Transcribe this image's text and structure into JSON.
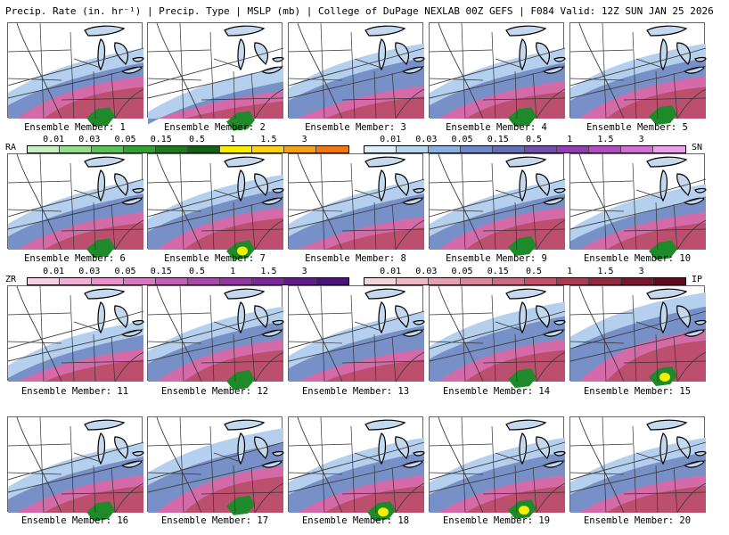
{
  "header": {
    "title": "Precip. Rate (in. hr⁻¹) | Precip. Type | MSLP (mb) | College of DuPage NEXLAB    00Z GEFS | F084 Valid: 12Z SUN JAN 25 2026"
  },
  "members": [
    {
      "label": "Ensemble Member: 1",
      "snow": 0.55,
      "mix": 0.35,
      "rain": 0.1,
      "heavy": false
    },
    {
      "label": "Ensemble Member: 2",
      "snow": 0.35,
      "mix": 0.2,
      "rain": 0.06,
      "heavy": false
    },
    {
      "label": "Ensemble Member: 3",
      "snow": 0.6,
      "mix": 0.25,
      "rain": 0.0,
      "heavy": false
    },
    {
      "label": "Ensemble Member: 4",
      "snow": 0.55,
      "mix": 0.3,
      "rain": 0.1,
      "heavy": false
    },
    {
      "label": "Ensemble Member: 5",
      "snow": 0.6,
      "mix": 0.35,
      "rain": 0.12,
      "heavy": false
    },
    {
      "label": "Ensemble Member: 6",
      "snow": 0.55,
      "mix": 0.3,
      "rain": 0.1,
      "heavy": false
    },
    {
      "label": "Ensemble Member: 7",
      "snow": 0.6,
      "mix": 0.35,
      "rain": 0.08,
      "heavy": true
    },
    {
      "label": "Ensemble Member: 8",
      "snow": 0.55,
      "mix": 0.25,
      "rain": 0.0,
      "heavy": false
    },
    {
      "label": "Ensemble Member: 9",
      "snow": 0.55,
      "mix": 0.35,
      "rain": 0.12,
      "heavy": false
    },
    {
      "label": "Ensemble Member: 10",
      "snow": 0.5,
      "mix": 0.3,
      "rain": 0.08,
      "heavy": false
    },
    {
      "label": "Ensemble Member: 11",
      "snow": 0.45,
      "mix": 0.25,
      "rain": 0.0,
      "heavy": false
    },
    {
      "label": "Ensemble Member: 12",
      "snow": 0.6,
      "mix": 0.35,
      "rain": 0.1,
      "heavy": false
    },
    {
      "label": "Ensemble Member: 13",
      "snow": 0.55,
      "mix": 0.25,
      "rain": 0.0,
      "heavy": false
    },
    {
      "label": "Ensemble Member: 14",
      "snow": 0.65,
      "mix": 0.35,
      "rain": 0.12,
      "heavy": false
    },
    {
      "label": "Ensemble Member: 15",
      "snow": 0.75,
      "mix": 0.45,
      "rain": 0.14,
      "heavy": true
    },
    {
      "label": "Ensemble Member: 16",
      "snow": 0.55,
      "mix": 0.3,
      "rain": 0.1,
      "heavy": false
    },
    {
      "label": "Ensemble Member: 17",
      "snow": 0.7,
      "mix": 0.4,
      "rain": 0.16,
      "heavy": false
    },
    {
      "label": "Ensemble Member: 18",
      "snow": 0.6,
      "mix": 0.3,
      "rain": 0.1,
      "heavy": true
    },
    {
      "label": "Ensemble Member: 19",
      "snow": 0.6,
      "mix": 0.3,
      "rain": 0.12,
      "heavy": true
    },
    {
      "label": "Ensemble Member: 20",
      "snow": 0.6,
      "mix": 0.3,
      "rain": 0.0,
      "heavy": false
    }
  ],
  "legends": {
    "ra": {
      "code": "RA",
      "ticks": [
        "0.01",
        "0.03",
        "0.05",
        "0.15",
        "0.5",
        "1",
        "1.5",
        "3"
      ],
      "colors": [
        "#c8eec4",
        "#98dc90",
        "#5cc05a",
        "#34a034",
        "#1f7a1f",
        "#146014",
        "#f6f000",
        "#ffd21a",
        "#f4a21a",
        "#f07814"
      ]
    },
    "sn": {
      "code": "SN",
      "ticks": [
        "0.01",
        "0.03",
        "0.05",
        "0.15",
        "0.5",
        "1",
        "1.5",
        "3"
      ],
      "colors": [
        "#dceefa",
        "#b4d4f0",
        "#8cb0e0",
        "#7088c8",
        "#6470b4",
        "#7050a8",
        "#9040b0",
        "#b050c0",
        "#d070d0",
        "#e8a0e8"
      ]
    },
    "zr": {
      "code": "ZR",
      "ticks": [
        "0.01",
        "0.03",
        "0.05",
        "0.15",
        "0.5",
        "1",
        "1.5",
        "3"
      ],
      "colors": [
        "#f8d0e4",
        "#f0b0d4",
        "#e890c8",
        "#d878c0",
        "#c060b4",
        "#a848a8",
        "#9038a0",
        "#782898",
        "#601c88",
        "#4a1478"
      ]
    },
    "ip": {
      "code": "IP",
      "ticks": [
        "0.01",
        "0.03",
        "0.05",
        "0.15",
        "0.5",
        "1",
        "1.5",
        "3"
      ],
      "colors": [
        "#f4d4dc",
        "#ecb8c4",
        "#e4a0b0",
        "#d8869a",
        "#cc6c84",
        "#c0506c",
        "#a83c54",
        "#902840",
        "#781830",
        "#600c20"
      ]
    }
  },
  "colors": {
    "snow_light": "#b4d0ee",
    "snow_mid": "#7890c8",
    "snow_heavy": "#5864a8",
    "mix": "#d46aa8",
    "ip": "#b84a64",
    "rain": "#1e8a2a",
    "rain_heavy": "#f2f000",
    "water": "#c4d8ee",
    "lake_outline": "#000000",
    "border": "#333333",
    "isobar": "#3c3c3c"
  }
}
